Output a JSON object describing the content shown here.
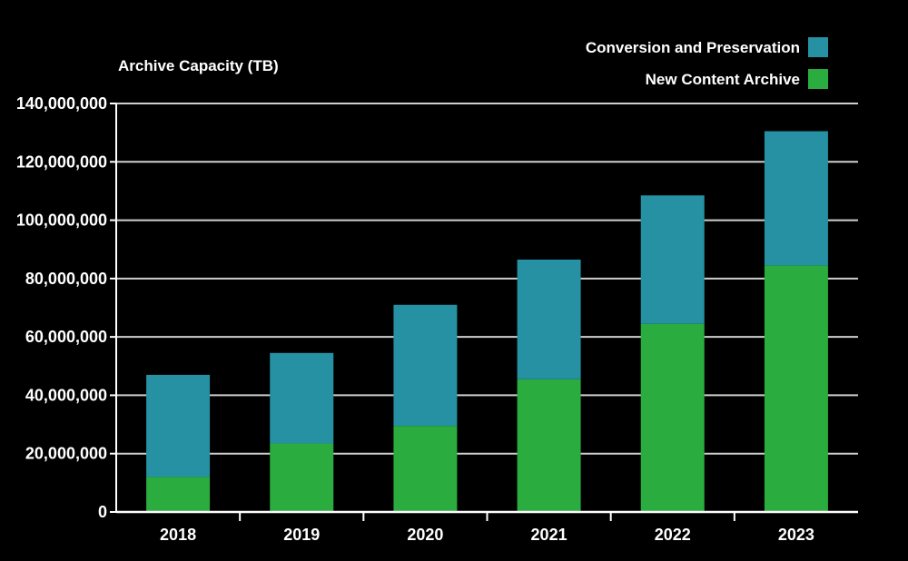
{
  "chart_data": {
    "type": "bar",
    "stacked": true,
    "title": "Archive Capacity (TB)",
    "xlabel": "",
    "ylabel": "Archive Capacity (TB)",
    "categories": [
      "2018",
      "2019",
      "2020",
      "2021",
      "2022",
      "2023"
    ],
    "series": [
      {
        "name": "New Content Archive",
        "color": "#2aac3e",
        "values": [
          12000000,
          23500000,
          29500000,
          45500000,
          64500000,
          84500000
        ]
      },
      {
        "name": "Conversion and Preservation",
        "color": "#2591a3",
        "values": [
          35000000,
          31000000,
          41500000,
          41000000,
          44000000,
          46000000
        ]
      }
    ],
    "ylim": [
      0,
      140000000
    ],
    "yticks": [
      0,
      20000000,
      40000000,
      60000000,
      80000000,
      100000000,
      120000000,
      140000000
    ],
    "ytick_labels": [
      "0",
      "20,000,000",
      "40,000,000",
      "60,000,000",
      "80,000,000",
      "100,000,000",
      "120,000,000",
      "140,000,000"
    ],
    "grid": true,
    "legend": {
      "position": "top-right",
      "entries": [
        "Conversion and Preservation",
        "New Content Archive"
      ]
    },
    "colors": {
      "background": "#000000",
      "text": "#ffffff",
      "gridline": "#cfcfcf",
      "axis": "#ffffff"
    }
  }
}
